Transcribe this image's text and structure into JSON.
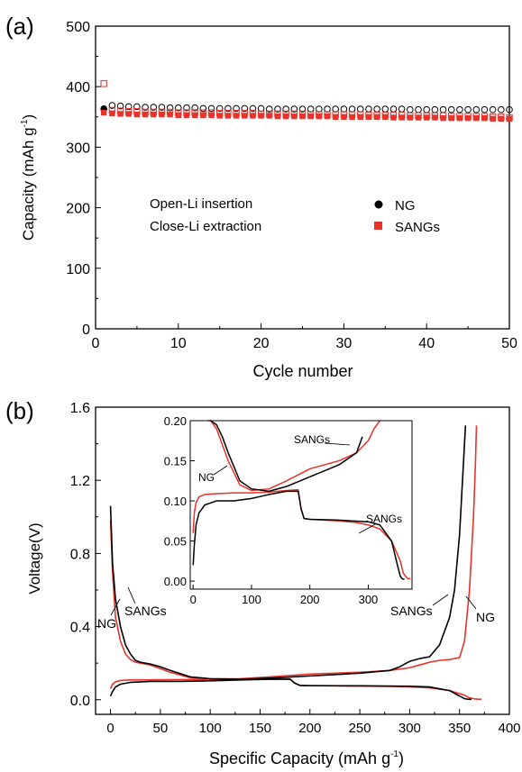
{
  "chart_data": [
    {
      "panel_label": "(a)",
      "type": "scatter",
      "xlabel": "Cycle number",
      "ylabel_main": "Capacity (mAh g",
      "ylabel_sup": "-1",
      "ylabel_close": ")",
      "xlim": [
        0,
        50
      ],
      "ylim": [
        0,
        500
      ],
      "xticks": [
        "0",
        "10",
        "20",
        "30",
        "40",
        "50"
      ],
      "yticks": [
        "0",
        "100",
        "200",
        "300",
        "400",
        "500"
      ],
      "annotations": [
        "Open-Li insertion",
        "Close-Li extraction"
      ],
      "legend_position": "center-right",
      "colors": {
        "NG": "#000000",
        "SANGs": "#e8322a"
      },
      "series": [
        {
          "name": "NG",
          "marker": "circle",
          "insertion": {
            "x": [
              1,
              2,
              3,
              4,
              5,
              6,
              7,
              8,
              9,
              10,
              11,
              12,
              13,
              14,
              15,
              16,
              17,
              18,
              19,
              20,
              21,
              22,
              23,
              24,
              25,
              26,
              27,
              28,
              29,
              30,
              31,
              32,
              33,
              34,
              35,
              36,
              37,
              38,
              39,
              40,
              41,
              42,
              43,
              44,
              45,
              46,
              47,
              48,
              49,
              50
            ],
            "y": [
              363,
              369,
              368,
              367,
              367,
              366,
              366,
              366,
              365,
              365,
              365,
              365,
              364,
              364,
              364,
              364,
              364,
              364,
              364,
              364,
              363,
              363,
              363,
              363,
              363,
              363,
              363,
              363,
              363,
              363,
              363,
              363,
              363,
              363,
              363,
              363,
              363,
              362,
              362,
              362,
              362,
              362,
              362,
              362,
              362,
              362,
              362,
              362,
              362,
              362
            ]
          },
          "extraction": {
            "x": [
              1
            ],
            "y": [
              364
            ]
          }
        },
        {
          "name": "SANGs",
          "marker": "square",
          "insertion": {
            "x": [
              1,
              2,
              3,
              4,
              5,
              6,
              7,
              8,
              9,
              10,
              11,
              12,
              13,
              14,
              15,
              16,
              17,
              18,
              19,
              20,
              21,
              22,
              23,
              24,
              25,
              26,
              27,
              28,
              29,
              30,
              31,
              32,
              33,
              34,
              35,
              36,
              37,
              38,
              39,
              40,
              41,
              42,
              43,
              44,
              45,
              46,
              47,
              48,
              49,
              50
            ],
            "y": [
              405,
              361,
              360,
              359,
              359,
              358,
              358,
              358,
              358,
              357,
              357,
              357,
              357,
              357,
              356,
              356,
              356,
              356,
              356,
              355,
              355,
              355,
              355,
              355,
              355,
              354,
              354,
              354,
              354,
              354,
              354,
              354,
              353,
              353,
              353,
              353,
              353,
              352,
              352,
              352,
              352,
              352,
              351,
              351,
              351,
              351,
              351,
              350,
              350,
              349
            ]
          },
          "extraction": {
            "x": [
              1,
              2,
              3,
              4,
              5,
              6,
              7,
              8,
              9,
              10,
              11,
              12,
              13,
              14,
              15,
              16,
              17,
              18,
              19,
              20,
              21,
              22,
              23,
              24,
              25,
              26,
              27,
              28,
              29,
              30,
              31,
              32,
              33,
              34,
              35,
              36,
              37,
              38,
              39,
              40,
              41,
              42,
              43,
              44,
              45,
              46,
              47,
              48,
              49,
              50
            ],
            "y": [
              357,
              356,
              355,
              355,
              354,
              354,
              354,
              354,
              354,
              353,
              353,
              353,
              353,
              353,
              352,
              352,
              352,
              352,
              352,
              352,
              352,
              351,
              351,
              351,
              351,
              351,
              351,
              351,
              350,
              350,
              350,
              350,
              350,
              350,
              350,
              349,
              349,
              349,
              349,
              349,
              349,
              348,
              348,
              348,
              348,
              348,
              348,
              347,
              347,
              347
            ]
          }
        }
      ]
    },
    {
      "panel_label": "(b)",
      "type": "line",
      "xlabel_main": "Specific Capacity (mAh g",
      "xlabel_sup": "-1",
      "xlabel_close": ")",
      "ylabel": "Voltage(V)",
      "xlim": [
        -15,
        400
      ],
      "ylim": [
        -0.08,
        1.6
      ],
      "xticks": [
        "0",
        "50",
        "100",
        "150",
        "200",
        "250",
        "300",
        "350",
        "400"
      ],
      "yticks": [
        "0.0",
        "0.4",
        "0.8",
        "1.2",
        "1.6"
      ],
      "annotations": [
        "NG",
        "SANGs",
        "SANGs",
        "NG"
      ],
      "colors": {
        "NG": "#000000",
        "SANGs": "#e8322a"
      },
      "series": [
        {
          "name": "NG",
          "discharge": {
            "x": [
              0,
              2,
              5,
              10,
              20,
              40,
              70,
              100,
              130,
              160,
              180,
              185,
              190,
              200,
              250,
              300,
              320,
              340,
              350,
              355,
              358,
              362
            ],
            "y": [
              0.02,
              0.045,
              0.07,
              0.085,
              0.095,
              0.1,
              0.1,
              0.103,
              0.108,
              0.112,
              0.112,
              0.09,
              0.078,
              0.077,
              0.076,
              0.074,
              0.07,
              0.05,
              0.02,
              0.006,
              0.003,
              0.002
            ]
          },
          "charge": {
            "x": [
              0,
              2,
              5,
              10,
              15,
              20,
              25,
              30,
              40,
              50,
              60,
              80,
              100,
              130,
              160,
              200,
              250,
              280,
              290,
              300,
              310,
              320,
              330,
              340,
              345,
              350,
              353,
              355,
              356
            ],
            "y": [
              1.06,
              0.75,
              0.55,
              0.4,
              0.3,
              0.25,
              0.215,
              0.205,
              0.195,
              0.18,
              0.16,
              0.125,
              0.115,
              0.112,
              0.118,
              0.13,
              0.145,
              0.16,
              0.18,
              0.21,
              0.225,
              0.235,
              0.3,
              0.45,
              0.6,
              0.9,
              1.2,
              1.4,
              1.5
            ]
          }
        },
        {
          "name": "SANGs",
          "discharge": {
            "x": [
              0,
              2,
              5,
              10,
              20,
              40,
              70,
              100,
              130,
              160,
              180,
              185,
              190,
              200,
              250,
              280,
              300,
              320,
              340,
              355,
              360,
              365,
              368,
              372
            ],
            "y": [
              0.06,
              0.085,
              0.098,
              0.105,
              0.108,
              0.109,
              0.11,
              0.11,
              0.111,
              0.113,
              0.114,
              0.09,
              0.078,
              0.077,
              0.075,
              0.073,
              0.07,
              0.065,
              0.05,
              0.025,
              0.01,
              0.005,
              0.003,
              0.003
            ]
          },
          "charge": {
            "x": [
              0,
              2,
              5,
              10,
              15,
              20,
              25,
              30,
              40,
              50,
              60,
              80,
              100,
              130,
              160,
              200,
              250,
              280,
              300,
              310,
              320,
              330,
              340,
              350,
              355,
              360,
              364,
              366,
              367
            ],
            "y": [
              0.98,
              0.7,
              0.45,
              0.32,
              0.25,
              0.22,
              0.205,
              0.2,
              0.19,
              0.17,
              0.15,
              0.12,
              0.113,
              0.115,
              0.125,
              0.14,
              0.15,
              0.16,
              0.175,
              0.19,
              0.205,
              0.215,
              0.22,
              0.23,
              0.32,
              0.6,
              1.0,
              1.3,
              1.5
            ]
          }
        }
      ],
      "inset": {
        "xlim": [
          -5,
          375
        ],
        "ylim": [
          -0.01,
          0.2
        ],
        "xticks": [
          "0",
          "100",
          "200",
          "300"
        ],
        "yticks": [
          "0.00",
          "0.05",
          "0.10",
          "0.15",
          "0.20"
        ],
        "annotations": [
          "SANGs",
          "NG",
          "SANGs"
        ]
      }
    }
  ]
}
